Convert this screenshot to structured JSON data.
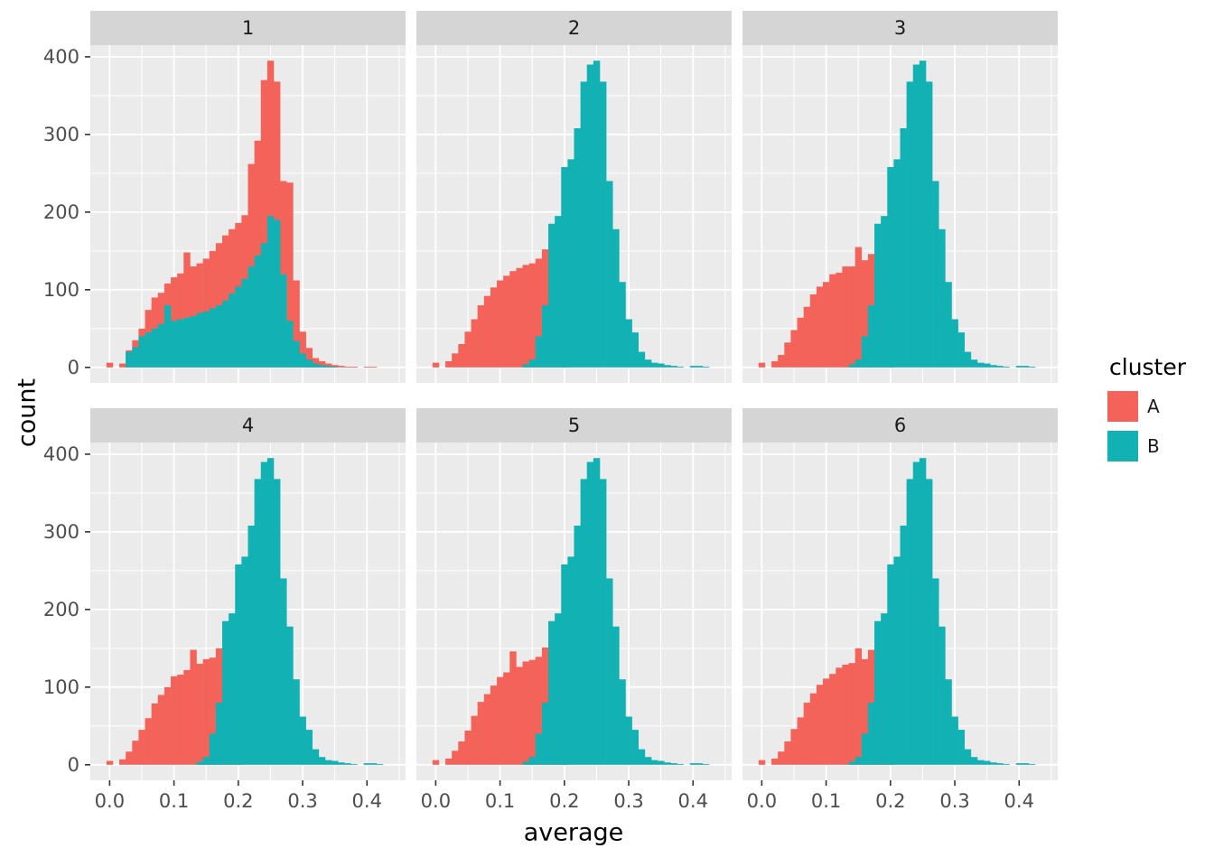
{
  "chart_data": {
    "type": "bar",
    "subtype": "faceted-overlaid-histogram",
    "title": "",
    "xlabel": "average",
    "ylabel": "count",
    "x_domain": [
      -0.03,
      0.46
    ],
    "y_domain": [
      -20,
      415
    ],
    "xticks": {
      "values": [
        0.0,
        0.1,
        0.2,
        0.3,
        0.4
      ],
      "labels": [
        "0.0",
        "0.1",
        "0.2",
        "0.3",
        "0.4"
      ]
    },
    "yticks": {
      "values": [
        0,
        100,
        200,
        300,
        400
      ],
      "labels": [
        "0",
        "100",
        "200",
        "300",
        "400"
      ]
    },
    "minor_xticks": [
      0.05,
      0.15,
      0.25,
      0.35,
      0.45
    ],
    "minor_yticks": [
      50,
      150,
      250,
      350
    ],
    "bin_width": 0.01,
    "bin_start_center": 0.0,
    "panel_bg": "#EBEBEB",
    "strip_bg": "#D5D5D5",
    "grid_color": "#FFFFFF",
    "tick_color": "#333333",
    "tick_label_color": "#4D4D4D",
    "legend": {
      "title": "cluster",
      "entries": [
        {
          "label": "A",
          "color": "#F4635A"
        },
        {
          "label": "B",
          "color": "#12B2B4"
        }
      ]
    },
    "facets": [
      {
        "label": "1",
        "series": {
          "A": [
            6,
            0,
            5,
            22,
            35,
            50,
            74,
            90,
            96,
            108,
            116,
            121,
            148,
            130,
            134,
            140,
            150,
            160,
            170,
            178,
            186,
            196,
            262,
            292,
            370,
            395,
            368,
            240,
            238,
            112,
            46,
            25,
            12,
            8,
            5,
            3,
            2,
            1,
            1,
            0,
            1,
            1,
            0
          ],
          "B": [
            0,
            0,
            0,
            20,
            26,
            40,
            45,
            50,
            56,
            80,
            60,
            62,
            64,
            66,
            70,
            72,
            76,
            80,
            86,
            95,
            104,
            114,
            130,
            144,
            160,
            195,
            190,
            120,
            60,
            34,
            18,
            10,
            5,
            3,
            2,
            1,
            0,
            0,
            0,
            0,
            0,
            0,
            0
          ]
        }
      },
      {
        "label": "2",
        "series": {
          "A": [
            6,
            0,
            8,
            18,
            30,
            46,
            62,
            80,
            92,
            103,
            112,
            118,
            124,
            128,
            132,
            134,
            140,
            152,
            140,
            60,
            15,
            0,
            0,
            0,
            0,
            0,
            0,
            0,
            0,
            0,
            0,
            0,
            0,
            0,
            0,
            0,
            0,
            0,
            0,
            0,
            0,
            0,
            0
          ],
          "B": [
            0,
            0,
            0,
            0,
            0,
            0,
            0,
            0,
            0,
            0,
            0,
            0,
            0,
            0,
            4,
            10,
            40,
            80,
            185,
            195,
            258,
            268,
            308,
            368,
            390,
            395,
            368,
            240,
            178,
            110,
            62,
            45,
            20,
            10,
            6,
            5,
            3,
            2,
            1,
            0,
            2,
            2,
            1
          ]
        }
      },
      {
        "label": "3",
        "series": {
          "A": [
            6,
            0,
            8,
            16,
            32,
            48,
            64,
            78,
            94,
            104,
            110,
            120,
            122,
            130,
            130,
            155,
            138,
            146,
            142,
            58,
            14,
            0,
            0,
            0,
            0,
            0,
            0,
            0,
            0,
            0,
            0,
            0,
            0,
            0,
            0,
            0,
            0,
            0,
            0,
            0,
            0,
            0,
            0
          ],
          "B": [
            0,
            0,
            0,
            0,
            0,
            0,
            0,
            0,
            0,
            0,
            0,
            0,
            0,
            0,
            4,
            10,
            40,
            80,
            185,
            195,
            258,
            268,
            308,
            368,
            390,
            395,
            368,
            240,
            178,
            110,
            62,
            45,
            20,
            10,
            6,
            5,
            3,
            2,
            1,
            0,
            2,
            2,
            1
          ]
        }
      },
      {
        "label": "4",
        "series": {
          "A": [
            5,
            0,
            7,
            17,
            31,
            45,
            60,
            79,
            90,
            100,
            114,
            116,
            122,
            148,
            130,
            136,
            138,
            150,
            138,
            62,
            16,
            0,
            0,
            0,
            0,
            0,
            0,
            0,
            0,
            0,
            0,
            0,
            0,
            0,
            0,
            0,
            0,
            0,
            0,
            0,
            0,
            0,
            0
          ],
          "B": [
            0,
            0,
            0,
            0,
            0,
            0,
            0,
            0,
            0,
            0,
            0,
            0,
            0,
            0,
            4,
            10,
            40,
            80,
            185,
            195,
            258,
            268,
            308,
            368,
            390,
            395,
            368,
            240,
            178,
            110,
            62,
            45,
            20,
            10,
            6,
            5,
            3,
            2,
            1,
            0,
            2,
            2,
            1
          ]
        }
      },
      {
        "label": "5",
        "series": {
          "A": [
            6,
            0,
            8,
            18,
            30,
            44,
            63,
            81,
            91,
            102,
            113,
            119,
            146,
            126,
            133,
            135,
            139,
            151,
            141,
            59,
            15,
            0,
            0,
            0,
            0,
            0,
            0,
            0,
            0,
            0,
            0,
            0,
            0,
            0,
            0,
            0,
            0,
            0,
            0,
            0,
            0,
            0,
            0
          ],
          "B": [
            0,
            0,
            0,
            0,
            0,
            0,
            0,
            0,
            0,
            0,
            0,
            0,
            0,
            0,
            4,
            10,
            40,
            80,
            185,
            195,
            258,
            268,
            308,
            368,
            390,
            395,
            368,
            240,
            178,
            110,
            62,
            45,
            20,
            10,
            6,
            5,
            3,
            2,
            1,
            0,
            2,
            2,
            1
          ]
        }
      },
      {
        "label": "6",
        "series": {
          "A": [
            6,
            0,
            8,
            17,
            30,
            46,
            61,
            80,
            92,
            103,
            111,
            117,
            125,
            129,
            131,
            150,
            136,
            148,
            139,
            60,
            15,
            0,
            0,
            0,
            0,
            0,
            0,
            0,
            0,
            0,
            0,
            0,
            0,
            0,
            0,
            0,
            0,
            0,
            0,
            0,
            0,
            0,
            0
          ],
          "B": [
            0,
            0,
            0,
            0,
            0,
            0,
            0,
            0,
            0,
            0,
            0,
            0,
            0,
            0,
            4,
            10,
            40,
            80,
            185,
            195,
            258,
            268,
            308,
            368,
            390,
            395,
            368,
            240,
            178,
            110,
            62,
            45,
            20,
            10,
            6,
            5,
            3,
            2,
            1,
            0,
            2,
            2,
            1
          ]
        }
      }
    ]
  }
}
